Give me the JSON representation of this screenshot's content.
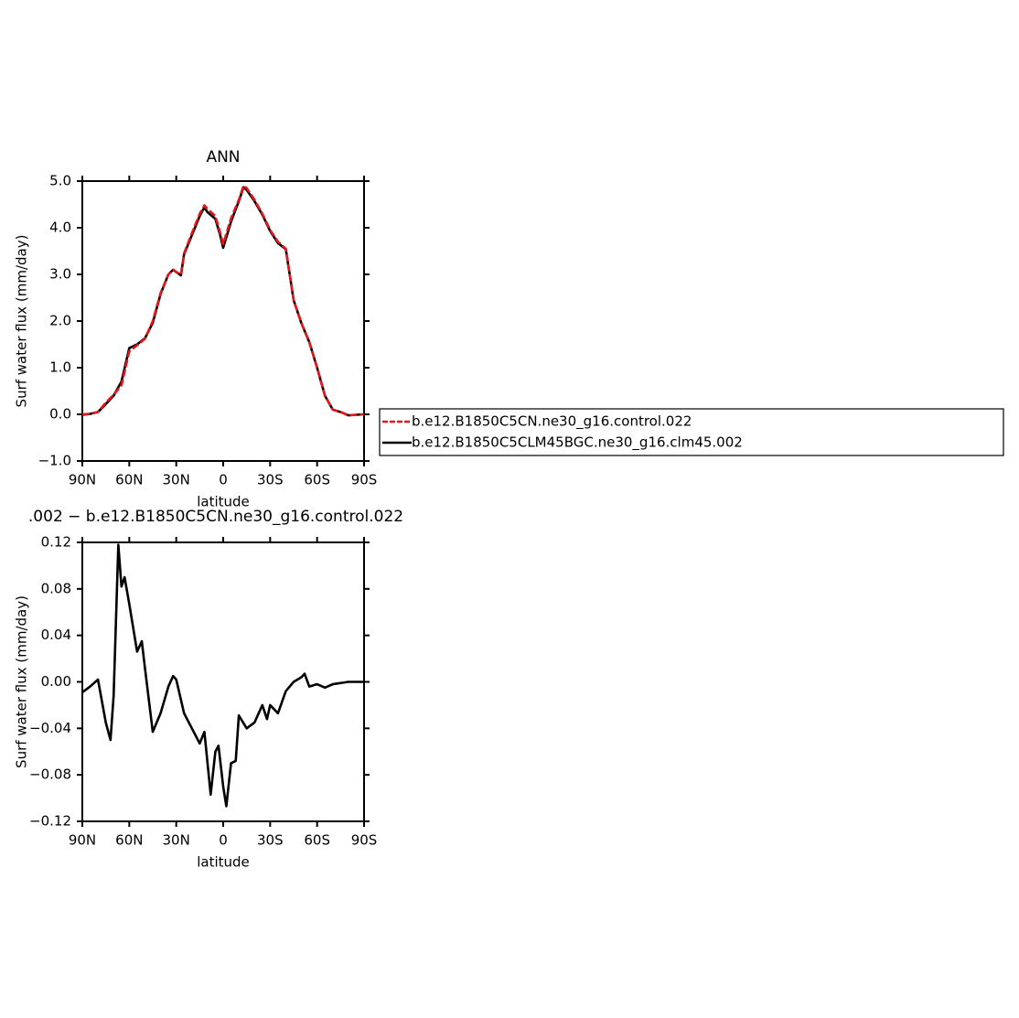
{
  "chart_data": [
    {
      "type": "line",
      "title": "ANN",
      "xlabel": "latitude",
      "ylabel": "Surf water flux (mm/day)",
      "x": [
        90,
        85,
        80,
        75,
        70,
        65,
        60,
        55,
        50,
        45,
        40,
        35,
        32,
        30,
        27,
        25,
        20,
        15,
        12,
        10,
        5,
        2,
        0,
        -5,
        -10,
        -13,
        -15,
        -20,
        -25,
        -30,
        -35,
        -40,
        -45,
        -50,
        -55,
        -60,
        -65,
        -70,
        -75,
        -80,
        -85,
        -90
      ],
      "series": [
        {
          "name": "b.e12.B1850C5CN.ne30_g16.control.022",
          "color": "#e8141a",
          "line_style": "dashed",
          "values": [
            0,
            0.01,
            0.05,
            0.25,
            0.42,
            0.62,
            1.35,
            1.48,
            1.62,
            2.0,
            2.6,
            3.0,
            3.1,
            3.05,
            3.0,
            3.45,
            3.88,
            4.3,
            4.48,
            4.4,
            4.25,
            3.9,
            3.65,
            4.2,
            4.6,
            4.9,
            4.85,
            4.6,
            4.3,
            3.95,
            3.7,
            3.55,
            2.45,
            1.95,
            1.55,
            1.0,
            0.4,
            0.1,
            0.05,
            -0.02,
            -0.01,
            0
          ]
        },
        {
          "name": "b.e12.B1850C5CLM45BGC.ne30_g16.clm45.002",
          "color": "#000000",
          "line_style": "solid",
          "values": [
            -0.01,
            0.01,
            0.05,
            0.22,
            0.4,
            0.7,
            1.42,
            1.5,
            1.63,
            1.96,
            2.58,
            3.0,
            3.1,
            3.05,
            2.98,
            3.43,
            3.84,
            4.25,
            4.44,
            4.33,
            4.19,
            3.85,
            3.57,
            4.13,
            4.57,
            4.87,
            4.81,
            4.57,
            4.28,
            3.93,
            3.67,
            3.54,
            2.45,
            1.95,
            1.55,
            1.0,
            0.4,
            0.1,
            0.05,
            -0.02,
            -0.01,
            0
          ]
        }
      ],
      "xlim": [
        90,
        -90
      ],
      "xticks": [
        {
          "value": 90,
          "label": "90N"
        },
        {
          "value": 60,
          "label": "60N"
        },
        {
          "value": 30,
          "label": "30N"
        },
        0,
        {
          "value": -30,
          "label": "30S"
        },
        {
          "value": -60,
          "label": "60S"
        },
        {
          "value": -90,
          "label": "90S"
        }
      ],
      "ylim": [
        -1,
        5
      ],
      "yticks": [
        {
          "value": -1,
          "label": "−1.0"
        },
        {
          "value": 0,
          "label": "0.0"
        },
        {
          "value": 1,
          "label": "1.0"
        },
        {
          "value": 2,
          "label": "2.0"
        },
        {
          "value": 3,
          "label": "3.0"
        },
        {
          "value": 4,
          "label": "4.0"
        },
        {
          "value": 5,
          "label": "5.0"
        }
      ],
      "legend": "right"
    },
    {
      "type": "line",
      "title": ".002 − b.e12.B1850C5CN.ne30_g16.control.022",
      "xlabel": "latitude",
      "ylabel": "Surf water flux (mm/day)",
      "x": [
        90,
        85,
        80,
        75,
        72,
        70,
        67,
        65,
        63,
        60,
        55,
        52,
        50,
        45,
        40,
        35,
        32,
        30,
        25,
        20,
        15,
        12,
        10,
        8,
        5,
        3,
        0,
        -2,
        -5,
        -8,
        -10,
        -15,
        -20,
        -25,
        -28,
        -30,
        -35,
        -40,
        -45,
        -50,
        -52,
        -55,
        -60,
        -65,
        -70,
        -75,
        -80,
        -85,
        -90
      ],
      "series": [
        {
          "color": "#000000",
          "line_style": "solid",
          "values": [
            -0.009,
            -0.004,
            0.002,
            -0.035,
            -0.05,
            -0.012,
            0.118,
            0.082,
            0.09,
            0.067,
            0.026,
            0.035,
            0.012,
            -0.043,
            -0.027,
            -0.004,
            0.005,
            0.002,
            -0.027,
            -0.04,
            -0.053,
            -0.043,
            -0.07,
            -0.097,
            -0.06,
            -0.055,
            -0.09,
            -0.107,
            -0.07,
            -0.068,
            -0.029,
            -0.04,
            -0.035,
            -0.02,
            -0.032,
            -0.02,
            -0.027,
            -0.008,
            0,
            0.004,
            0.007,
            -0.004,
            -0.002,
            -0.005,
            -0.002,
            -0.001,
            0,
            0,
            0
          ]
        }
      ],
      "xlim": [
        90,
        -90
      ],
      "xticks": [
        {
          "value": 90,
          "label": "90N"
        },
        {
          "value": 60,
          "label": "60N"
        },
        {
          "value": 30,
          "label": "30N"
        },
        0,
        {
          "value": -30,
          "label": "30S"
        },
        {
          "value": -60,
          "label": "60S"
        },
        {
          "value": -90,
          "label": "90S"
        }
      ],
      "ylim": [
        -0.12,
        0.12
      ],
      "yticks": [
        {
          "value": -0.12,
          "label": "−0.12"
        },
        {
          "value": -0.08,
          "label": "−0.08"
        },
        {
          "value": -0.04,
          "label": "−0.04"
        },
        {
          "value": 0,
          "label": "0.00"
        },
        0.04,
        0.08,
        0.12
      ]
    }
  ]
}
